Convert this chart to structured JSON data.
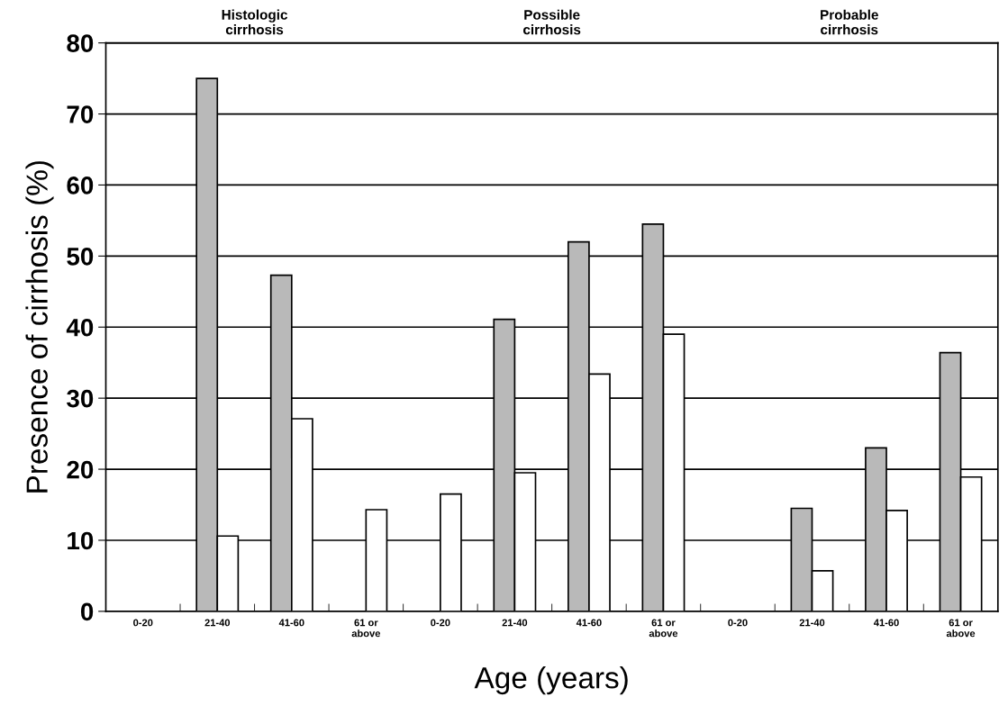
{
  "chart_data": {
    "type": "bar",
    "xlabel": "Age (years)",
    "ylabel": "Presence of cirrhosis (%)",
    "categories": [
      "0-20",
      "21-40",
      "41-60",
      "61 or\nabove",
      "0-20",
      "21-40",
      "41-60",
      "61 or\nabove",
      "0-20",
      "21-40",
      "41-60",
      "61 or\nabove"
    ],
    "series": [
      {
        "color": "#b9b9b9",
        "values": [
          null,
          75,
          47.3,
          null,
          null,
          41.1,
          52,
          54.5,
          null,
          14.5,
          23,
          36.4
        ]
      },
      {
        "color": "#ffffff",
        "values": [
          null,
          10.6,
          27.1,
          14.3,
          16.5,
          19.5,
          33.4,
          39,
          null,
          5.7,
          14.2,
          18.9
        ]
      }
    ],
    "annotations": [
      "Histologic\ncirrhosis",
      "Possible\ncirrhosis",
      "Probable\ncirrhosis"
    ],
    "ylim": [
      0,
      80
    ],
    "yticks": [
      0,
      10,
      20,
      30,
      40,
      50,
      60,
      70,
      80
    ],
    "grid": "y",
    "legend": false
  }
}
